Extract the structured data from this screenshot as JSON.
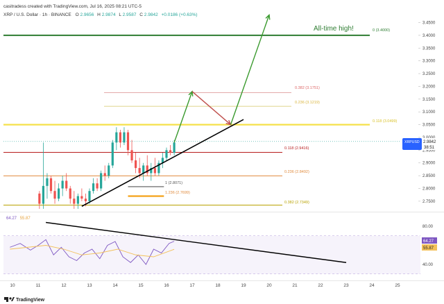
{
  "header": {
    "credit": "casitradess created with TradingView.com, Jul 16, 2025 08:21 UTC-5",
    "symbol": "XRP / U.S. Dollar · 1h · BINANCE",
    "o_label": "O",
    "o_value": "2.9656",
    "h_label": "H",
    "h_value": "2.9874",
    "l_label": "L",
    "l_value": "2.9587",
    "c_label": "C",
    "c_value": "2.9842",
    "change": "+0.0186 (+0.63%)"
  },
  "colors": {
    "up": "#26a69a",
    "down": "#ef5350",
    "green_line": "#2e7d32",
    "yellow": "#f5e04a",
    "fib_red": "#b71c1c",
    "fib_orange": "#e08a3c",
    "fib_olive": "#b8a200",
    "rsi": "#7e57c2",
    "rsi_ma": "#f3c15a",
    "badge": "#2962ff"
  },
  "annotations": {
    "ath": "All-time high!",
    "fib_0": "0 (3.4000)",
    "fib_0382_top": "0.382 (3.1751)",
    "fib_0236_top": "0.236 (3.1219)",
    "fib_0118_top": "0.118 (3.0499)",
    "fib_0118": "0.118 (2.9416)",
    "fib_0236": "0.236 (2.8492)",
    "fib_0382": "0.382 (2.7349)",
    "fib_1": "1 (2.8071)",
    "fib_1236": "1.236 (2.7699)"
  },
  "badge": {
    "symbol": "XRPUSD",
    "price": "2.9842",
    "countdown": "38:51"
  },
  "rsi": {
    "value_a": "64.27",
    "value_b": "55.87",
    "legend_a": "64.27",
    "legend_b": "55.87"
  },
  "footer": {
    "brand": "TradingView"
  },
  "chart_data": [
    {
      "type": "candlestick",
      "title": "XRP / U.S. Dollar · 1h · BINANCE",
      "ylim": [
        2.7,
        3.5
      ],
      "y_ticks": [
        "3.4500",
        "3.4000",
        "3.3500",
        "3.3000",
        "3.2500",
        "3.2000",
        "3.1500",
        "3.1000",
        "3.0500",
        "3.0000",
        "2.9500",
        "2.9000",
        "2.8500",
        "2.8000",
        "2.7500"
      ],
      "x_ticks": [
        "10",
        "11",
        "12",
        "13",
        "14",
        "15",
        "16",
        "17",
        "18",
        "19",
        "20",
        "21",
        "22",
        "23",
        "24",
        "25"
      ],
      "x_range": [
        9.9,
        25.4
      ],
      "candles": [
        {
          "t": 11.05,
          "o": 2.78,
          "h": 2.79,
          "l": 2.72,
          "c": 2.74
        },
        {
          "t": 11.2,
          "o": 2.74,
          "h": 2.98,
          "l": 2.72,
          "c": 2.81
        },
        {
          "t": 11.35,
          "o": 2.81,
          "h": 2.86,
          "l": 2.76,
          "c": 2.84
        },
        {
          "t": 11.5,
          "o": 2.84,
          "h": 2.85,
          "l": 2.78,
          "c": 2.79
        },
        {
          "t": 11.65,
          "o": 2.79,
          "h": 2.83,
          "l": 2.74,
          "c": 2.76
        },
        {
          "t": 11.8,
          "o": 2.76,
          "h": 2.82,
          "l": 2.75,
          "c": 2.8
        },
        {
          "t": 11.95,
          "o": 2.8,
          "h": 2.85,
          "l": 2.77,
          "c": 2.83
        },
        {
          "t": 12.1,
          "o": 2.83,
          "h": 2.86,
          "l": 2.79,
          "c": 2.8
        },
        {
          "t": 12.25,
          "o": 2.8,
          "h": 2.81,
          "l": 2.74,
          "c": 2.76
        },
        {
          "t": 12.4,
          "o": 2.76,
          "h": 2.79,
          "l": 2.72,
          "c": 2.74
        },
        {
          "t": 12.55,
          "o": 2.74,
          "h": 2.78,
          "l": 2.72,
          "c": 2.77
        },
        {
          "t": 12.7,
          "o": 2.77,
          "h": 2.8,
          "l": 2.75,
          "c": 2.76
        },
        {
          "t": 12.85,
          "o": 2.76,
          "h": 2.78,
          "l": 2.73,
          "c": 2.75
        },
        {
          "t": 13.0,
          "o": 2.75,
          "h": 2.8,
          "l": 2.74,
          "c": 2.79
        },
        {
          "t": 13.15,
          "o": 2.79,
          "h": 2.84,
          "l": 2.78,
          "c": 2.82
        },
        {
          "t": 13.3,
          "o": 2.82,
          "h": 2.84,
          "l": 2.79,
          "c": 2.8
        },
        {
          "t": 13.45,
          "o": 2.8,
          "h": 2.87,
          "l": 2.79,
          "c": 2.86
        },
        {
          "t": 13.6,
          "o": 2.86,
          "h": 2.89,
          "l": 2.83,
          "c": 2.85
        },
        {
          "t": 13.75,
          "o": 2.85,
          "h": 2.9,
          "l": 2.84,
          "c": 2.89
        },
        {
          "t": 13.9,
          "o": 2.89,
          "h": 2.99,
          "l": 2.88,
          "c": 2.98
        },
        {
          "t": 14.05,
          "o": 2.98,
          "h": 3.04,
          "l": 2.95,
          "c": 3.02
        },
        {
          "t": 14.2,
          "o": 3.02,
          "h": 3.03,
          "l": 2.96,
          "c": 2.98
        },
        {
          "t": 14.35,
          "o": 2.98,
          "h": 3.04,
          "l": 2.97,
          "c": 3.02
        },
        {
          "t": 14.5,
          "o": 3.02,
          "h": 3.03,
          "l": 2.93,
          "c": 2.95
        },
        {
          "t": 14.65,
          "o": 2.95,
          "h": 2.99,
          "l": 2.9,
          "c": 2.91
        },
        {
          "t": 14.8,
          "o": 2.91,
          "h": 2.94,
          "l": 2.86,
          "c": 2.88
        },
        {
          "t": 14.95,
          "o": 2.88,
          "h": 2.92,
          "l": 2.84,
          "c": 2.86
        },
        {
          "t": 15.1,
          "o": 2.86,
          "h": 2.9,
          "l": 2.83,
          "c": 2.89
        },
        {
          "t": 15.25,
          "o": 2.89,
          "h": 2.93,
          "l": 2.85,
          "c": 2.86
        },
        {
          "t": 15.4,
          "o": 2.86,
          "h": 2.9,
          "l": 2.83,
          "c": 2.88
        },
        {
          "t": 15.55,
          "o": 2.88,
          "h": 2.92,
          "l": 2.85,
          "c": 2.86
        },
        {
          "t": 15.7,
          "o": 2.86,
          "h": 2.91,
          "l": 2.85,
          "c": 2.9
        },
        {
          "t": 15.85,
          "o": 2.9,
          "h": 2.94,
          "l": 2.88,
          "c": 2.92
        },
        {
          "t": 16.0,
          "o": 2.92,
          "h": 2.96,
          "l": 2.91,
          "c": 2.95
        },
        {
          "t": 16.15,
          "o": 2.95,
          "h": 2.97,
          "l": 2.93,
          "c": 2.94
        },
        {
          "t": 16.3,
          "o": 2.94,
          "h": 2.99,
          "l": 2.93,
          "c": 2.98
        }
      ],
      "horizontal_levels": [
        {
          "y": 3.4,
          "label": "0 (3.4000)",
          "color": "green_line"
        },
        {
          "y": 3.1751,
          "label": "0.382 (3.1751)",
          "color": "fib_red"
        },
        {
          "y": 3.1219,
          "label": "0.236 (3.1219)",
          "color": "fib_olive"
        },
        {
          "y": 3.0499,
          "label": "0.118 (3.0499)",
          "color": "yellow"
        },
        {
          "y": 2.9416,
          "label": "0.118 (2.9416)",
          "color": "fib_red"
        },
        {
          "y": 2.8492,
          "label": "0.236 (2.8492)",
          "color": "fib_orange"
        },
        {
          "y": 2.7349,
          "label": "0.382 (2.7349)",
          "color": "fib_olive"
        }
      ],
      "trendlines": [
        {
          "x1": 12.7,
          "y1": 2.73,
          "x2": 19.0,
          "y2": 3.07,
          "color": "#000000"
        }
      ],
      "projection": [
        {
          "x": 16.3,
          "y": 2.98
        },
        {
          "x": 17.0,
          "y": 3.18
        },
        {
          "x": 18.5,
          "y": 3.05
        },
        {
          "x": 20.0,
          "y": 3.48
        }
      ]
    },
    {
      "type": "line",
      "title": "RSI",
      "ylim": [
        30,
        90
      ],
      "y_ticks": [
        "80.00",
        "40.00"
      ],
      "band": [
        30,
        70
      ],
      "series": [
        {
          "values_x": [
            9.9,
            10.3,
            10.7,
            11.0,
            11.3,
            11.6,
            11.9,
            12.2,
            12.5,
            12.8,
            13.1,
            13.4,
            13.7,
            14.0,
            14.3,
            14.6,
            14.9,
            15.2,
            15.5,
            15.8,
            16.1,
            16.3
          ],
          "values": [
            58,
            62,
            55,
            60,
            66,
            50,
            58,
            48,
            44,
            52,
            56,
            46,
            60,
            64,
            48,
            42,
            50,
            40,
            56,
            52,
            62,
            64.27
          ]
        },
        {
          "values_x": [
            9.9,
            10.6,
            11.3,
            12.0,
            12.7,
            13.4,
            14.1,
            14.8,
            15.5,
            16.3
          ],
          "values": [
            56,
            58,
            60,
            56,
            50,
            52,
            56,
            50,
            48,
            55.87
          ]
        }
      ],
      "trendlines": [
        {
          "x1": 11.3,
          "y1": 84,
          "x2": 23.0,
          "y2": 42
        }
      ]
    }
  ]
}
